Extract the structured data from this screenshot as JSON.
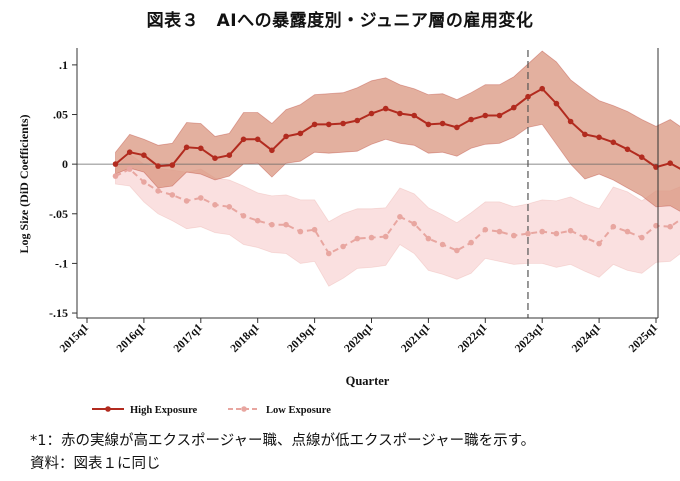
{
  "title": "図表３　AIへの暴露度別・ジュニア層の雇用変化",
  "notes": {
    "note1": "*1：赤の実線が高エクスポージャー職、点線が低エクスポージャー職を示す。",
    "note2": "資料：図表１に同じ"
  },
  "colors": {
    "high": "#b22b1f",
    "high_band": "#d9957f",
    "low": "#e8a6a0",
    "low_band": "#f9dada",
    "event_line": "#555555"
  },
  "chart_data": {
    "type": "line",
    "title": "",
    "xlabel": "Quarter",
    "ylabel": "Log Size (DiD Coefficients)",
    "ylim": [
      -0.155,
      0.115
    ],
    "yticks": [
      -0.15,
      -0.1,
      -0.05,
      0,
      0.05,
      0.1
    ],
    "ytick_labels": [
      "-.15",
      "-.1",
      "-.05",
      "0",
      ".05",
      ".1"
    ],
    "xticks": [
      "2015q1",
      "2016q1",
      "2017q1",
      "2018q1",
      "2019q1",
      "2020q1",
      "2021q1",
      "2022q1",
      "2023q1",
      "2024q1",
      "2025q1"
    ],
    "x_start": "2015q3",
    "event_line": "2022q4",
    "zero_line": 0,
    "legend": {
      "placement": "bottom",
      "items": [
        "High Exposure",
        "Low Exposure"
      ]
    },
    "series": [
      {
        "name": "High Exposure",
        "style": "solid",
        "values": [
          0.0,
          0.012,
          0.009,
          -0.002,
          -0.001,
          0.017,
          0.016,
          0.006,
          0.009,
          0.025,
          0.025,
          0.014,
          0.028,
          0.031,
          0.04,
          0.04,
          0.041,
          0.044,
          0.051,
          0.056,
          0.051,
          0.049,
          0.04,
          0.041,
          0.037,
          0.045,
          0.049,
          0.049,
          0.057,
          0.068,
          0.076,
          0.061,
          0.043,
          0.03,
          0.027,
          0.022,
          0.015,
          0.007,
          -0.003,
          0.001,
          -0.007,
          -0.017
        ],
        "upper": [
          0.012,
          0.03,
          0.025,
          0.019,
          0.021,
          0.042,
          0.041,
          0.028,
          0.031,
          0.052,
          0.052,
          0.041,
          0.055,
          0.06,
          0.07,
          0.071,
          0.072,
          0.077,
          0.084,
          0.087,
          0.08,
          0.076,
          0.07,
          0.071,
          0.065,
          0.072,
          0.08,
          0.08,
          0.088,
          0.101,
          0.114,
          0.103,
          0.085,
          0.074,
          0.064,
          0.059,
          0.053,
          0.045,
          0.038,
          0.045,
          0.035,
          0.02
        ],
        "lower": [
          -0.01,
          -0.004,
          -0.008,
          -0.024,
          -0.022,
          -0.008,
          -0.01,
          -0.016,
          -0.012,
          0.0,
          0.001,
          -0.013,
          0.001,
          0.003,
          0.012,
          0.011,
          0.012,
          0.013,
          0.02,
          0.025,
          0.021,
          0.019,
          0.011,
          0.012,
          0.008,
          0.016,
          0.02,
          0.021,
          0.027,
          0.037,
          0.04,
          0.02,
          0.0,
          -0.015,
          -0.01,
          -0.016,
          -0.024,
          -0.032,
          -0.043,
          -0.042,
          -0.05,
          -0.056
        ]
      },
      {
        "name": "Low Exposure",
        "style": "dashed",
        "values": [
          -0.012,
          -0.005,
          -0.018,
          -0.027,
          -0.031,
          -0.037,
          -0.034,
          -0.041,
          -0.043,
          -0.052,
          -0.057,
          -0.061,
          -0.061,
          -0.068,
          -0.066,
          -0.09,
          -0.083,
          -0.075,
          -0.074,
          -0.073,
          -0.053,
          -0.06,
          -0.075,
          -0.081,
          -0.087,
          -0.079,
          -0.066,
          -0.068,
          -0.072,
          -0.07,
          -0.068,
          -0.07,
          -0.067,
          -0.074,
          -0.08,
          -0.063,
          -0.068,
          -0.074,
          -0.062,
          -0.063,
          -0.053,
          -0.058
        ],
        "upper": [
          -0.005,
          0.01,
          0.0,
          -0.004,
          -0.006,
          -0.008,
          -0.005,
          -0.014,
          -0.016,
          -0.022,
          -0.029,
          -0.032,
          -0.031,
          -0.036,
          -0.036,
          -0.058,
          -0.05,
          -0.045,
          -0.045,
          -0.044,
          -0.024,
          -0.03,
          -0.044,
          -0.051,
          -0.059,
          -0.049,
          -0.038,
          -0.038,
          -0.043,
          -0.04,
          -0.036,
          -0.037,
          -0.033,
          -0.04,
          -0.045,
          -0.023,
          -0.028,
          -0.037,
          -0.027,
          -0.027,
          -0.021,
          -0.024
        ],
        "lower": [
          -0.02,
          -0.022,
          -0.038,
          -0.05,
          -0.057,
          -0.065,
          -0.063,
          -0.069,
          -0.071,
          -0.081,
          -0.084,
          -0.089,
          -0.09,
          -0.1,
          -0.098,
          -0.123,
          -0.115,
          -0.105,
          -0.104,
          -0.102,
          -0.081,
          -0.09,
          -0.107,
          -0.111,
          -0.116,
          -0.11,
          -0.095,
          -0.098,
          -0.101,
          -0.1,
          -0.1,
          -0.104,
          -0.101,
          -0.108,
          -0.114,
          -0.101,
          -0.107,
          -0.11,
          -0.099,
          -0.098,
          -0.087,
          -0.104
        ]
      }
    ]
  }
}
